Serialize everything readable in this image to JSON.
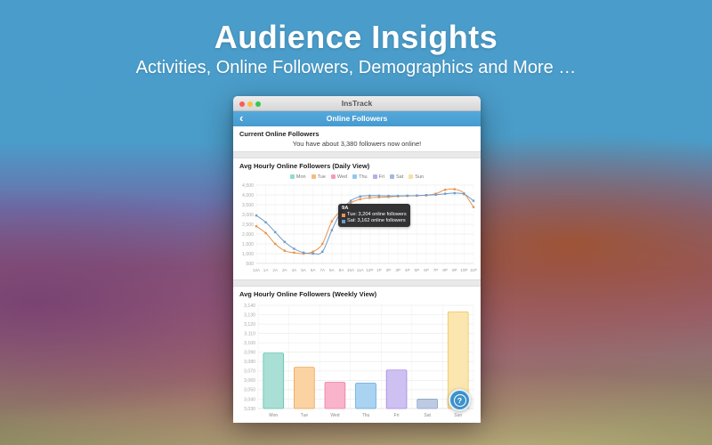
{
  "hero": {
    "title": "Audience Insights",
    "subtitle": "Activities, Online Followers, Demographics and More …"
  },
  "app_window": {
    "titlebar": {
      "title": "InsTrack"
    },
    "navbar": {
      "back_icon": "‹",
      "title": "Online Followers"
    },
    "current_section": {
      "header": "Current Online Followers",
      "message": "You have about 3,380 followers now online!"
    },
    "daily_section_header": "Avg Hourly Online Followers (Daily View)",
    "weekly_section_header": "Avg Hourly Online Followers (Weekly View)",
    "help_button_label": "?"
  },
  "colors": {
    "nav_blue": "#4aa0d6",
    "accent_blue": "#3e92c9",
    "tue_line": "#e8954d",
    "sat_line": "#6f9cc9"
  },
  "chart_data": [
    {
      "type": "line",
      "title": "Avg Hourly Online Followers (Daily View)",
      "x": [
        "12A",
        "1A",
        "2A",
        "3A",
        "4A",
        "5A",
        "6A",
        "7A",
        "8A",
        "9A",
        "10A",
        "11A",
        "12P",
        "1P",
        "2P",
        "3P",
        "4P",
        "5P",
        "6P",
        "7P",
        "8P",
        "9P",
        "10P",
        "11P"
      ],
      "ylim": [
        500,
        4500
      ],
      "ytick_step": 500,
      "grid": true,
      "legend_position": "top",
      "legend": [
        {
          "label": "Mon",
          "color": "#8edcd0"
        },
        {
          "label": "Tue",
          "color": "#f6bb80"
        },
        {
          "label": "Wed",
          "color": "#f59cba"
        },
        {
          "label": "Thu",
          "color": "#90c8ec"
        },
        {
          "label": "Fri",
          "color": "#bcaaec"
        },
        {
          "label": "Sat",
          "color": "#a4b8d8"
        },
        {
          "label": "Sun",
          "color": "#f8dfa0"
        }
      ],
      "series": [
        {
          "name": "Tue",
          "color": "#e8954d",
          "values": [
            2400,
            2050,
            1500,
            1150,
            1050,
            1000,
            1100,
            1500,
            2650,
            3204,
            3600,
            3780,
            3850,
            3880,
            3900,
            3930,
            3950,
            3960,
            3990,
            4060,
            4260,
            4290,
            4080,
            3380
          ]
        },
        {
          "name": "Sat",
          "color": "#6f9cc9",
          "values": [
            2950,
            2600,
            2100,
            1600,
            1250,
            1050,
            1000,
            1100,
            2200,
            3162,
            3700,
            3920,
            3960,
            3960,
            3950,
            3950,
            3960,
            3970,
            3980,
            4010,
            4060,
            4090,
            4040,
            3700
          ]
        }
      ],
      "tooltip": {
        "title": "9A",
        "items": [
          {
            "color": "#e8954d",
            "text": "Tue: 3,204 online followers"
          },
          {
            "color": "#6f9cc9",
            "text": "Sat: 3,162 online followers"
          }
        ]
      }
    },
    {
      "type": "bar",
      "title": "Avg Hourly Online Followers (Weekly View)",
      "categories": [
        "Mon",
        "Tue",
        "Wed",
        "Thu",
        "Fri",
        "Sat",
        "Sun"
      ],
      "values": [
        3089,
        3074,
        3058,
        3057,
        3071,
        3040,
        3133
      ],
      "ylim": [
        3030,
        3140
      ],
      "ytick_step": 10,
      "grid": true,
      "bars": [
        {
          "fill": "#aadfd6",
          "stroke": "#59c2b2"
        },
        {
          "fill": "#fbd3a2",
          "stroke": "#f0a050"
        },
        {
          "fill": "#f9b3ca",
          "stroke": "#ef7ba3"
        },
        {
          "fill": "#a9d3f1",
          "stroke": "#5fa8dd"
        },
        {
          "fill": "#cfc0f2",
          "stroke": "#a488e0"
        },
        {
          "fill": "#bccbe2",
          "stroke": "#8aa3c6"
        },
        {
          "fill": "#fae6ae",
          "stroke": "#eec661"
        }
      ]
    }
  ]
}
